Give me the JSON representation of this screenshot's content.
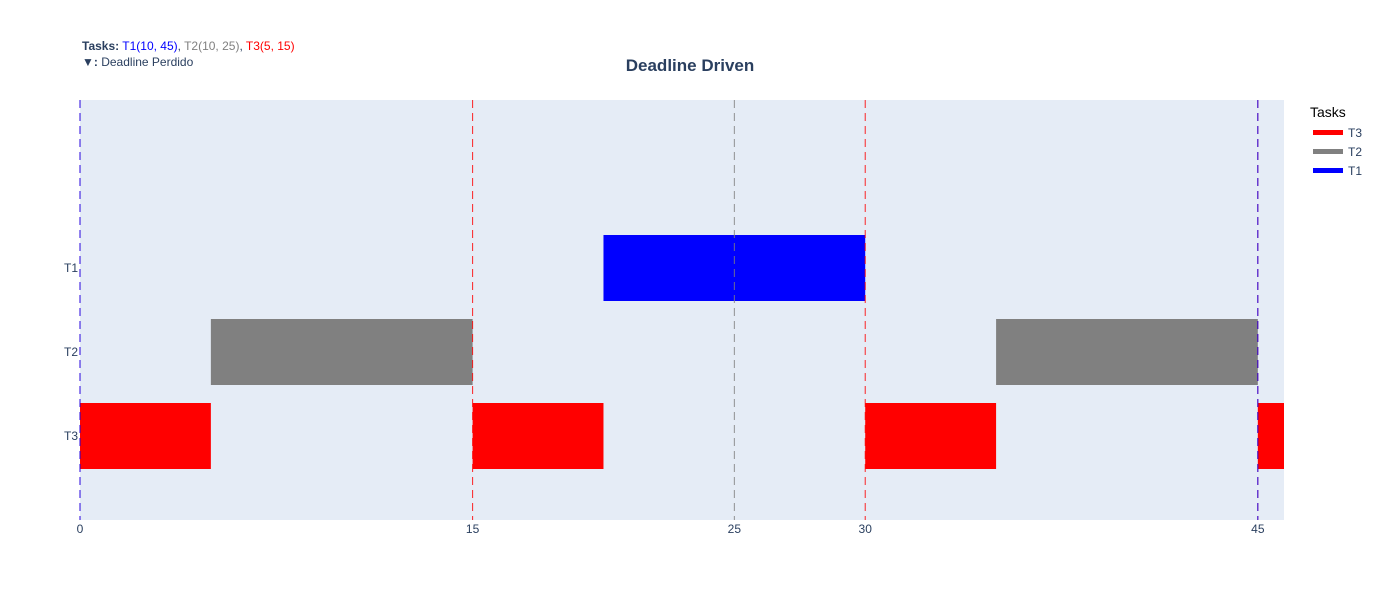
{
  "info": {
    "tasks_label": "Tasks:",
    "tasks": [
      {
        "text": "T1(10, 45)",
        "color": "#0000ff"
      },
      {
        "text": "T2(10, 25)",
        "color": "#808080"
      },
      {
        "text": "T3(5, 15)",
        "color": "#ff0000"
      }
    ],
    "separator": ", ",
    "deadline_symbol": "▼:",
    "deadline_text": "Deadline Perdido"
  },
  "chart_data": {
    "type": "gantt",
    "title": "Deadline Driven",
    "xlim": [
      0,
      46
    ],
    "x_ticks": [
      0,
      15,
      25,
      30,
      45
    ],
    "categories": [
      "T1",
      "T2",
      "T3"
    ],
    "bars": [
      {
        "task": "T3",
        "start": 0,
        "end": 5
      },
      {
        "task": "T2",
        "start": 5,
        "end": 15
      },
      {
        "task": "T3",
        "start": 15,
        "end": 20
      },
      {
        "task": "T1",
        "start": 20,
        "end": 30
      },
      {
        "task": "T3",
        "start": 30,
        "end": 35
      },
      {
        "task": "T2",
        "start": 35,
        "end": 45
      },
      {
        "task": "T3",
        "start": 45,
        "end": 46
      }
    ],
    "deadline_lines": [
      {
        "x": 0,
        "color": "#ff0000"
      },
      {
        "x": 15,
        "color": "#ff0000"
      },
      {
        "x": 25,
        "color": "#808080"
      },
      {
        "x": 30,
        "color": "#ff0000"
      },
      {
        "x": 45,
        "color": "#ff0000"
      },
      {
        "x": 0,
        "color": "#0000ff"
      },
      {
        "x": 45,
        "color": "#0000ff"
      }
    ],
    "colors": {
      "T1": "#0000ff",
      "T2": "#808080",
      "T3": "#ff0000",
      "plot_bg": "#e5ecf6"
    },
    "legend": {
      "title": "Tasks",
      "items": [
        "T3",
        "T2",
        "T1"
      ],
      "position": "right"
    }
  }
}
